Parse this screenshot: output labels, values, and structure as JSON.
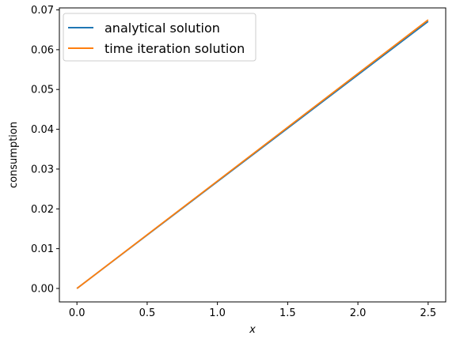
{
  "chart_data": {
    "type": "line",
    "title": "",
    "xlabel": "x",
    "ylabel": "consumption",
    "xlim": [
      -0.125,
      2.625
    ],
    "ylim": [
      -0.00338,
      0.0705
    ],
    "xticks": [
      0.0,
      0.5,
      1.0,
      1.5,
      2.0,
      2.5
    ],
    "xtick_labels": [
      "0.0",
      "0.5",
      "1.0",
      "1.5",
      "2.0",
      "2.5"
    ],
    "yticks": [
      0.0,
      0.01,
      0.02,
      0.03,
      0.04,
      0.05,
      0.06,
      0.07
    ],
    "ytick_labels": [
      "0.00",
      "0.01",
      "0.02",
      "0.03",
      "0.04",
      "0.05",
      "0.06",
      "0.07"
    ],
    "grid": false,
    "legend_position": "top-left",
    "series": [
      {
        "name": "analytical solution",
        "color": "#1f77b4",
        "x": [
          0.0,
          2.5
        ],
        "y": [
          0.0,
          0.0671
        ]
      },
      {
        "name": "time iteration solution",
        "color": "#ff7f0e",
        "x": [
          0.0,
          2.5
        ],
        "y": [
          0.0,
          0.0675
        ]
      }
    ]
  }
}
